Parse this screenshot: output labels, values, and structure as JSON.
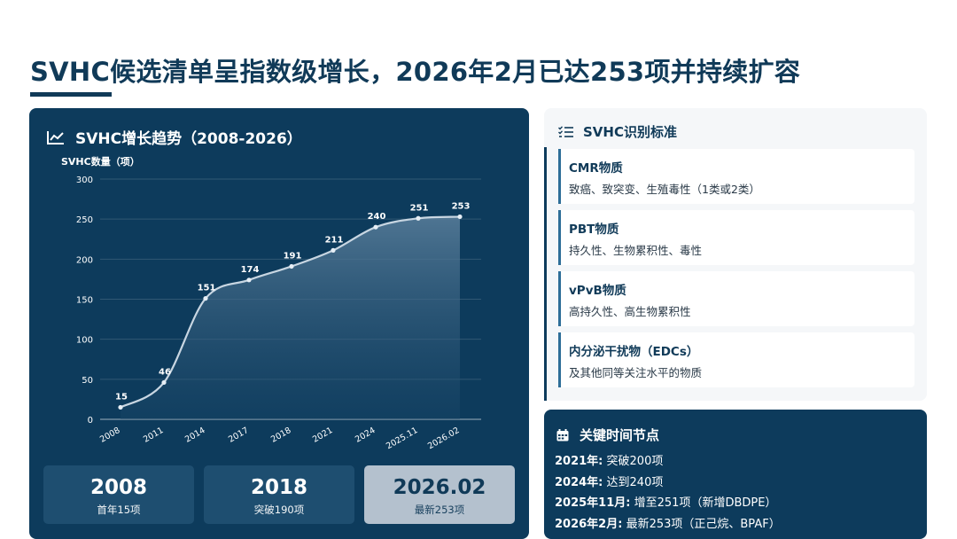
{
  "slide": {
    "title": "SVHC候选清单呈指数级增长，2026年2月已达253项并持续扩容"
  },
  "left_panel": {
    "title": "SVHC增长趋势（2008-2026）",
    "icon": "line-chart-icon"
  },
  "chart_data": {
    "type": "area",
    "title": "SVHC增长趋势（2008-2026）",
    "ylabel": "SVHC数量（项）",
    "xlabel": "",
    "categories": [
      "2008",
      "2011",
      "2014",
      "2017",
      "2018",
      "2021",
      "2024",
      "2025.11",
      "2026.02"
    ],
    "series": [
      {
        "values": [
          15,
          46,
          151,
          174,
          191,
          211,
          240,
          251,
          253
        ]
      }
    ],
    "data_labels": [
      "15",
      "46",
      "151",
      "174",
      "191",
      "211",
      "240",
      "251",
      "253"
    ],
    "ylim": [
      0,
      300
    ],
    "yticks": [
      0,
      50,
      100,
      150,
      200,
      250,
      300
    ],
    "grid": true,
    "colors": {
      "line": "#c8d6e2",
      "fill_top": "#5a7f9c",
      "fill_bottom": "#1a4769",
      "label": "#ffffff"
    }
  },
  "stats": [
    {
      "num": "2008",
      "sub": "首年15项"
    },
    {
      "num": "2018",
      "sub": "突破190项"
    },
    {
      "num": "2026.02",
      "sub": "最新253项"
    }
  ],
  "criteria_panel": {
    "title": "SVHC识别标准",
    "icon": "checklist-icon",
    "items": [
      {
        "name": "CMR物质",
        "desc": "致癌、致突变、生殖毒性（1类或2类）"
      },
      {
        "name": "PBT物质",
        "desc": "持久性、生物累积性、毒性"
      },
      {
        "name": "vPvB物质",
        "desc": "高持久性、高生物累积性"
      },
      {
        "name": "内分泌干扰物（EDCs）",
        "desc": "及其他同等关注水平的物质"
      }
    ]
  },
  "timeline": {
    "title": "关键时间节点",
    "icon": "calendar-icon",
    "items": [
      {
        "when": "2021年:",
        "what": "突破200项"
      },
      {
        "when": "2024年:",
        "what": "达到240项"
      },
      {
        "when": "2025年11月:",
        "what": "增至251项（新增DBDPE）"
      },
      {
        "when": "2026年2月:",
        "what": "最新253项（正己烷、BPAF）"
      }
    ]
  },
  "colors": {
    "brand_navy": "#0d3b5c",
    "title_text": "#103a58",
    "stat_card": "#1e4e70",
    "stat_highlight": "#b4c1ce",
    "panel_light": "#f5f7f9"
  }
}
